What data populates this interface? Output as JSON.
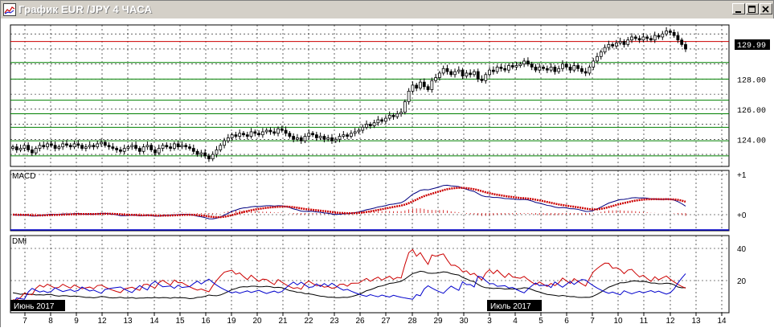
{
  "window": {
    "title": "График EUR /JPY  4 ЧАСА",
    "buttons": [
      "minimize",
      "maximize",
      "close"
    ]
  },
  "chart_data": [
    {
      "type": "candlestick",
      "symbol": "EUR/JPY",
      "timeframe": "4 ЧАСА",
      "ylim": [
        122.2,
        131.6
      ],
      "y_tick_labels": [
        "124.00",
        "126.00",
        "128.00"
      ],
      "y_ticks": [
        124,
        126,
        128
      ],
      "current_price": 129.99,
      "current_price_label": "129.99",
      "horizontal_levels": [
        {
          "price": 130.5,
          "color": "#cc0000"
        },
        {
          "price": 129.1,
          "color": "#008000"
        },
        {
          "price": 128.0,
          "color": "#008000"
        },
        {
          "price": 126.6,
          "color": "#008000"
        },
        {
          "price": 125.7,
          "color": "#008000"
        },
        {
          "price": 124.8,
          "color": "#008000"
        },
        {
          "price": 123.9,
          "color": "#008000"
        },
        {
          "price": 122.9,
          "color": "#008000"
        }
      ],
      "closes": [
        123.5,
        123.3,
        123.4,
        123.6,
        123.3,
        123.1,
        123.4,
        123.6,
        123.5,
        123.7,
        123.6,
        123.4,
        123.5,
        123.7,
        123.6,
        123.5,
        123.7,
        123.6,
        123.4,
        123.5,
        123.6,
        123.5,
        123.7,
        123.8,
        123.6,
        123.5,
        123.4,
        123.3,
        123.2,
        123.4,
        123.5,
        123.6,
        123.4,
        123.2,
        123.5,
        123.6,
        123.3,
        123.1,
        123.4,
        123.6,
        123.5,
        123.4,
        123.7,
        123.5,
        123.6,
        123.5,
        123.4,
        123.2,
        123.0,
        123.1,
        122.9,
        122.7,
        123.0,
        123.3,
        123.6,
        123.9,
        124.1,
        124.3,
        124.2,
        124.4,
        124.3,
        124.2,
        124.5,
        124.4,
        124.3,
        124.5,
        124.6,
        124.5,
        124.4,
        124.7,
        124.6,
        124.4,
        124.2,
        124.0,
        124.1,
        123.9,
        124.2,
        124.4,
        124.3,
        124.1,
        124.2,
        124.0,
        124.1,
        123.9,
        124.0,
        124.2,
        124.3,
        124.2,
        124.4,
        124.5,
        124.6,
        124.8,
        125.0,
        124.9,
        125.1,
        125.3,
        125.2,
        125.4,
        125.6,
        125.5,
        125.7,
        125.8,
        126.5,
        127.2,
        127.6,
        127.4,
        127.8,
        127.5,
        127.3,
        127.9,
        128.1,
        128.4,
        128.7,
        128.5,
        128.3,
        128.5,
        128.6,
        128.2,
        128.4,
        128.3,
        128.5,
        128.0,
        127.9,
        128.3,
        128.6,
        128.5,
        128.8,
        128.7,
        128.6,
        128.9,
        128.8,
        128.9,
        129.0,
        129.2,
        129.0,
        128.8,
        128.6,
        128.8,
        128.7,
        128.6,
        128.8,
        128.5,
        128.7,
        129.0,
        128.8,
        128.6,
        128.9,
        128.7,
        128.5,
        128.4,
        128.8,
        129.2,
        129.5,
        129.8,
        130.1,
        130.3,
        130.2,
        130.4,
        130.5,
        130.3,
        130.6,
        130.8,
        130.7,
        130.6,
        130.8,
        130.7,
        130.6,
        130.9,
        130.8,
        131.0,
        131.2,
        131.1,
        130.9,
        130.6,
        130.3,
        130.0
      ]
    },
    {
      "type": "macd",
      "title": "MACD",
      "ylim": [
        -0.4,
        1.1
      ],
      "y_tick_labels": [
        "+1",
        "+0"
      ],
      "y_ticks": [
        1,
        0
      ]
    },
    {
      "type": "dmi",
      "title": "DMI",
      "ylim": [
        0,
        48
      ],
      "y_tick_labels": [
        "40",
        "20"
      ],
      "y_ticks": [
        40,
        20
      ]
    }
  ],
  "x_axis": {
    "tick_labels": [
      "7",
      "8",
      "9",
      "12",
      "13",
      "14",
      "15",
      "16",
      "19",
      "20",
      "21",
      "22",
      "23",
      "26",
      "27",
      "28",
      "29",
      "30",
      "3",
      "4",
      "5",
      "6",
      "7",
      "10",
      "11",
      "12",
      "13",
      "14"
    ],
    "month_markers": [
      "Июнь 2017",
      "Июль 2017"
    ]
  }
}
